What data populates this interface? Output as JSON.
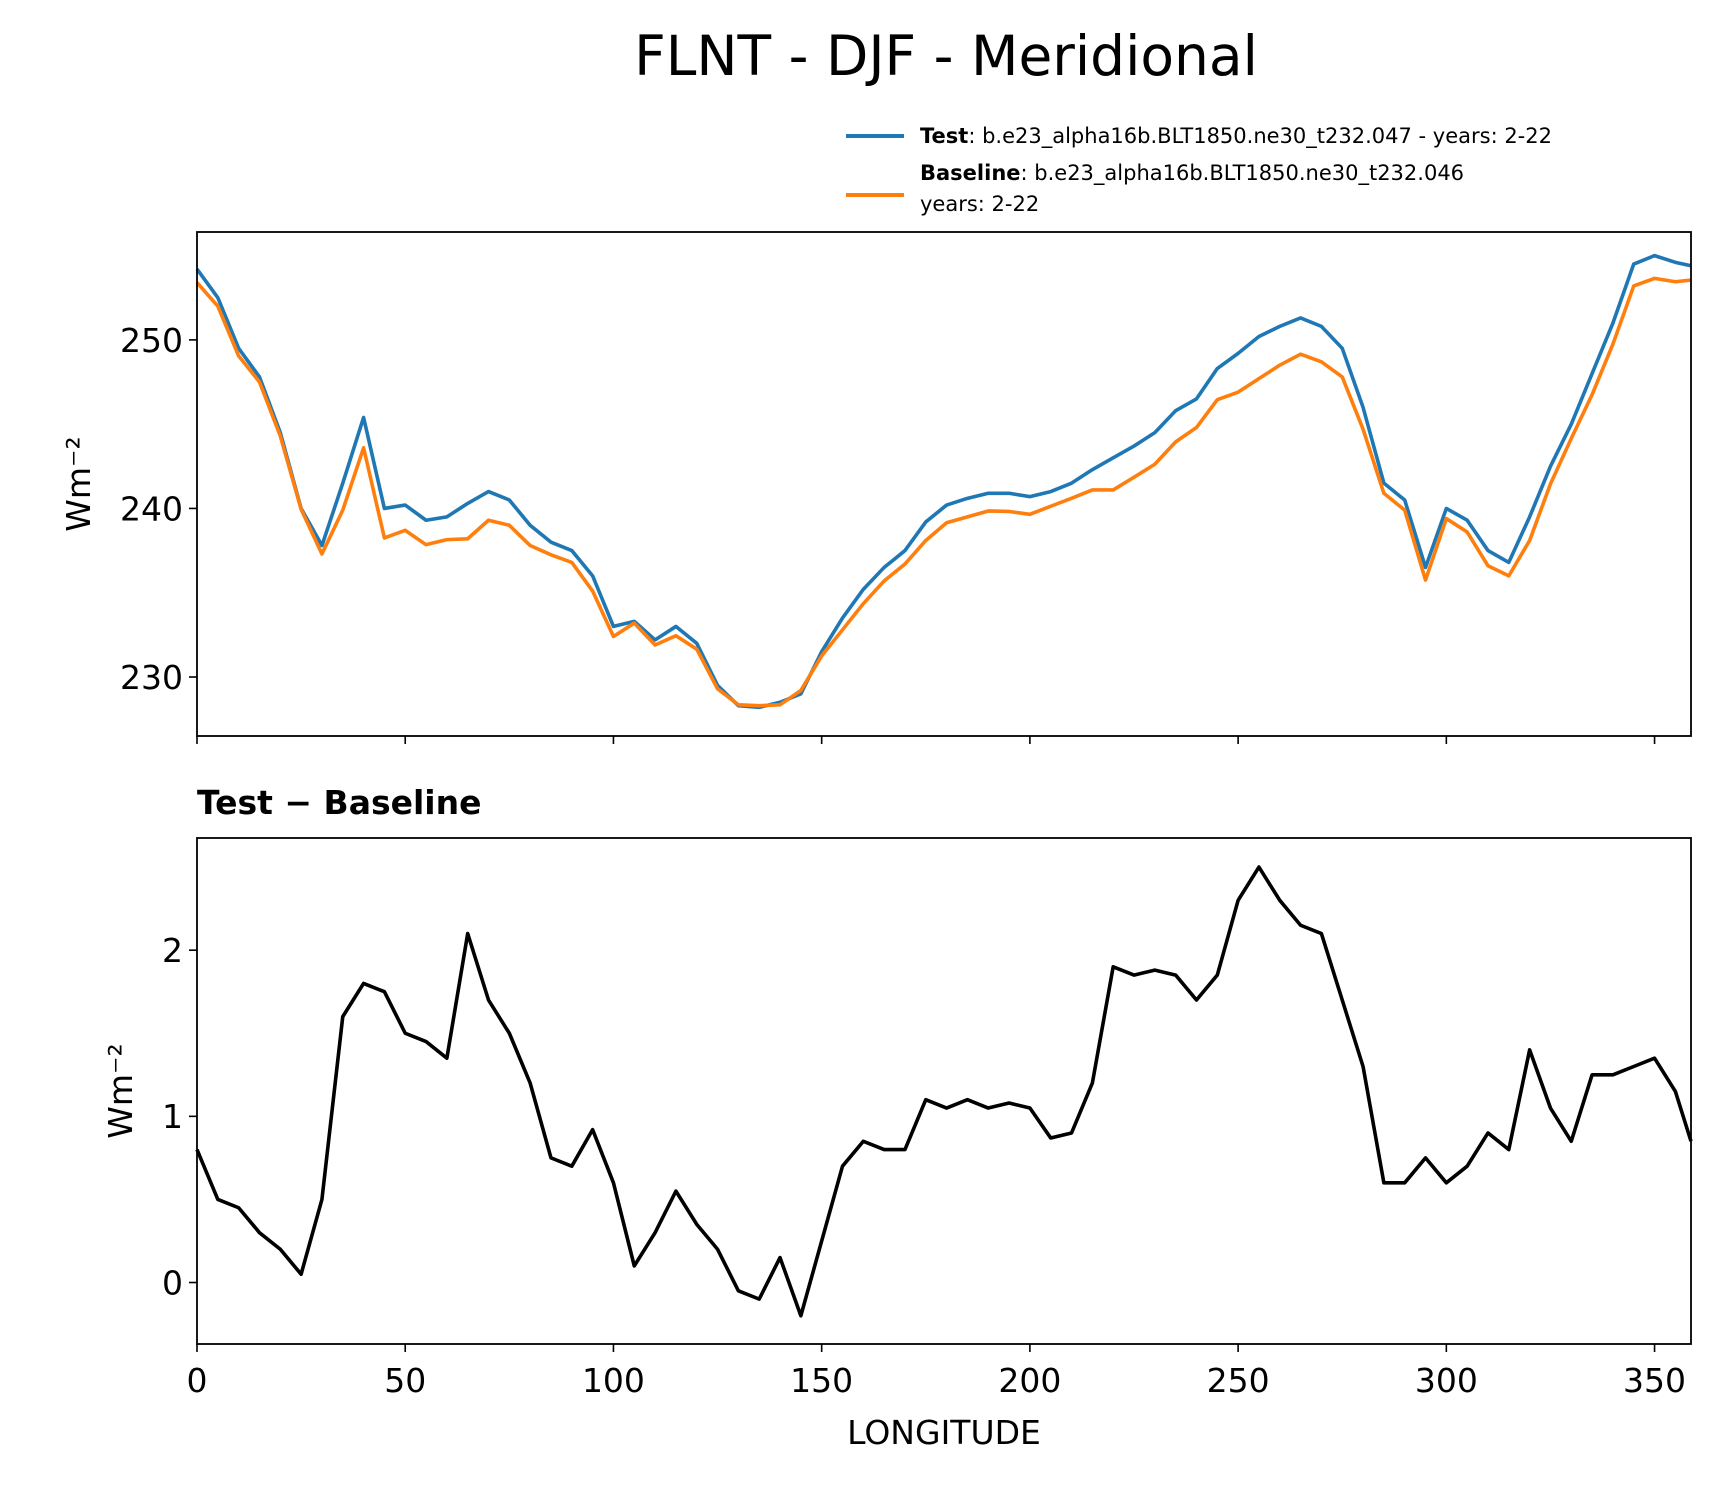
{
  "chart_data": [
    {
      "type": "line",
      "title": "FLNT - DJF - Meridional",
      "ylabel": "Wm⁻²",
      "x": [
        0,
        5,
        10,
        15,
        20,
        25,
        30,
        35,
        40,
        45,
        50,
        55,
        60,
        65,
        70,
        75,
        80,
        85,
        90,
        95,
        100,
        105,
        110,
        115,
        120,
        125,
        130,
        135,
        140,
        145,
        150,
        155,
        160,
        165,
        170,
        175,
        180,
        185,
        190,
        195,
        200,
        205,
        210,
        215,
        220,
        225,
        230,
        235,
        240,
        245,
        250,
        255,
        260,
        265,
        270,
        275,
        280,
        285,
        290,
        295,
        300,
        305,
        310,
        315,
        320,
        325,
        330,
        335,
        340,
        345,
        350,
        355,
        358.75
      ],
      "series": [
        {
          "name": "Test",
          "description": [
            ": b.e23_alpha16b.BLT1850.ne30_t232.047 - years: 2-22"
          ],
          "color": "#1f77b4",
          "values": [
            254.2,
            252.5,
            249.5,
            247.8,
            244.5,
            240,
            237.8,
            241.5,
            245.4,
            240,
            240.2,
            239.3,
            239.5,
            240.3,
            241,
            240.5,
            239,
            238,
            237.5,
            236,
            233,
            233.3,
            232.2,
            233,
            232,
            229.5,
            228.3,
            228.2,
            228.5,
            229,
            231.5,
            233.5,
            235.2,
            236.5,
            237.5,
            239.2,
            240.2,
            240.6,
            240.9,
            240.9,
            240.7,
            241,
            241.5,
            242.3,
            243,
            243.7,
            244.5,
            245.8,
            246.5,
            248.3,
            249.2,
            250.2,
            250.8,
            251.3,
            250.8,
            249.5,
            246,
            241.5,
            240.5,
            236.5,
            240,
            239.3,
            237.5,
            236.8,
            239.5,
            242.5,
            245,
            248,
            251,
            254.5,
            255,
            254.6,
            254.4
          ]
        },
        {
          "name": "Baseline",
          "description": [
            ": b.e23_alpha16b.BLT1850.ne30_t232.046",
            "years: 2-22"
          ],
          "color": "#ff7f0e",
          "values": [
            253.4,
            252.0,
            249.05,
            247.5,
            244.3,
            239.95,
            237.3,
            239.9,
            243.6,
            238.25,
            238.7,
            237.85,
            238.15,
            238.2,
            239.3,
            239.0,
            237.8,
            237.25,
            236.8,
            235.1,
            232.4,
            233.2,
            231.9,
            232.45,
            231.65,
            229.3,
            228.35,
            228.3,
            228.35,
            229.2,
            231.25,
            232.8,
            234.35,
            235.7,
            236.7,
            238.1,
            239.15,
            239.5,
            239.85,
            239.82,
            239.65,
            240.13,
            240.6,
            241.1,
            241.1,
            241.85,
            242.62,
            243.95,
            244.8,
            246.45,
            246.9,
            247.7,
            248.5,
            249.15,
            248.7,
            247.8,
            244.7,
            240.9,
            239.9,
            235.75,
            239.4,
            238.6,
            236.6,
            236.0,
            238.1,
            241.45,
            244.15,
            246.75,
            249.75,
            253.2,
            253.65,
            253.45,
            253.55
          ]
        }
      ],
      "xlim": [
        0,
        358.75
      ],
      "xticks": [
        0,
        50,
        100,
        150,
        200,
        250,
        300,
        350
      ],
      "show_xticklabels": false,
      "ylim": [
        226.5,
        256.4
      ],
      "yticks": [
        230,
        240,
        250
      ]
    },
    {
      "type": "line",
      "subtitle": "Test − Baseline",
      "xlabel": "LONGITUDE",
      "ylabel": "Wm⁻²",
      "x": [
        0,
        5,
        10,
        15,
        20,
        25,
        30,
        35,
        40,
        45,
        50,
        55,
        60,
        65,
        70,
        75,
        80,
        85,
        90,
        95,
        100,
        105,
        110,
        115,
        120,
        125,
        130,
        135,
        140,
        145,
        150,
        155,
        160,
        165,
        170,
        175,
        180,
        185,
        190,
        195,
        200,
        205,
        210,
        215,
        220,
        225,
        230,
        235,
        240,
        245,
        250,
        255,
        260,
        265,
        270,
        275,
        280,
        285,
        290,
        295,
        300,
        305,
        310,
        315,
        320,
        325,
        330,
        335,
        340,
        345,
        350,
        355,
        358.75
      ],
      "series": [
        {
          "color": "#000000",
          "values": [
            0.8,
            0.5,
            0.45,
            0.3,
            0.2,
            0.05,
            0.5,
            1.6,
            1.8,
            1.75,
            1.5,
            1.45,
            1.35,
            2.1,
            1.7,
            1.5,
            1.2,
            0.75,
            0.7,
            0.92,
            0.6,
            0.1,
            0.3,
            0.55,
            0.35,
            0.2,
            -0.05,
            -0.1,
            0.15,
            -0.2,
            0.25,
            0.7,
            0.85,
            0.8,
            0.8,
            1.1,
            1.05,
            1.1,
            1.05,
            1.08,
            1.05,
            0.87,
            0.9,
            1.2,
            1.9,
            1.85,
            1.88,
            1.85,
            1.7,
            1.85,
            2.3,
            2.5,
            2.3,
            2.15,
            2.1,
            1.7,
            1.3,
            0.6,
            0.6,
            0.75,
            0.6,
            0.7,
            0.9,
            0.8,
            1.4,
            1.05,
            0.85,
            1.25,
            1.25,
            1.3,
            1.35,
            1.15,
            0.85
          ]
        }
      ],
      "xlim": [
        0,
        358.75
      ],
      "xticks": [
        0,
        50,
        100,
        150,
        200,
        250,
        300,
        350
      ],
      "show_xticklabels": true,
      "ylim": [
        -0.37,
        2.675
      ],
      "yticks": [
        0,
        1,
        2
      ]
    }
  ]
}
